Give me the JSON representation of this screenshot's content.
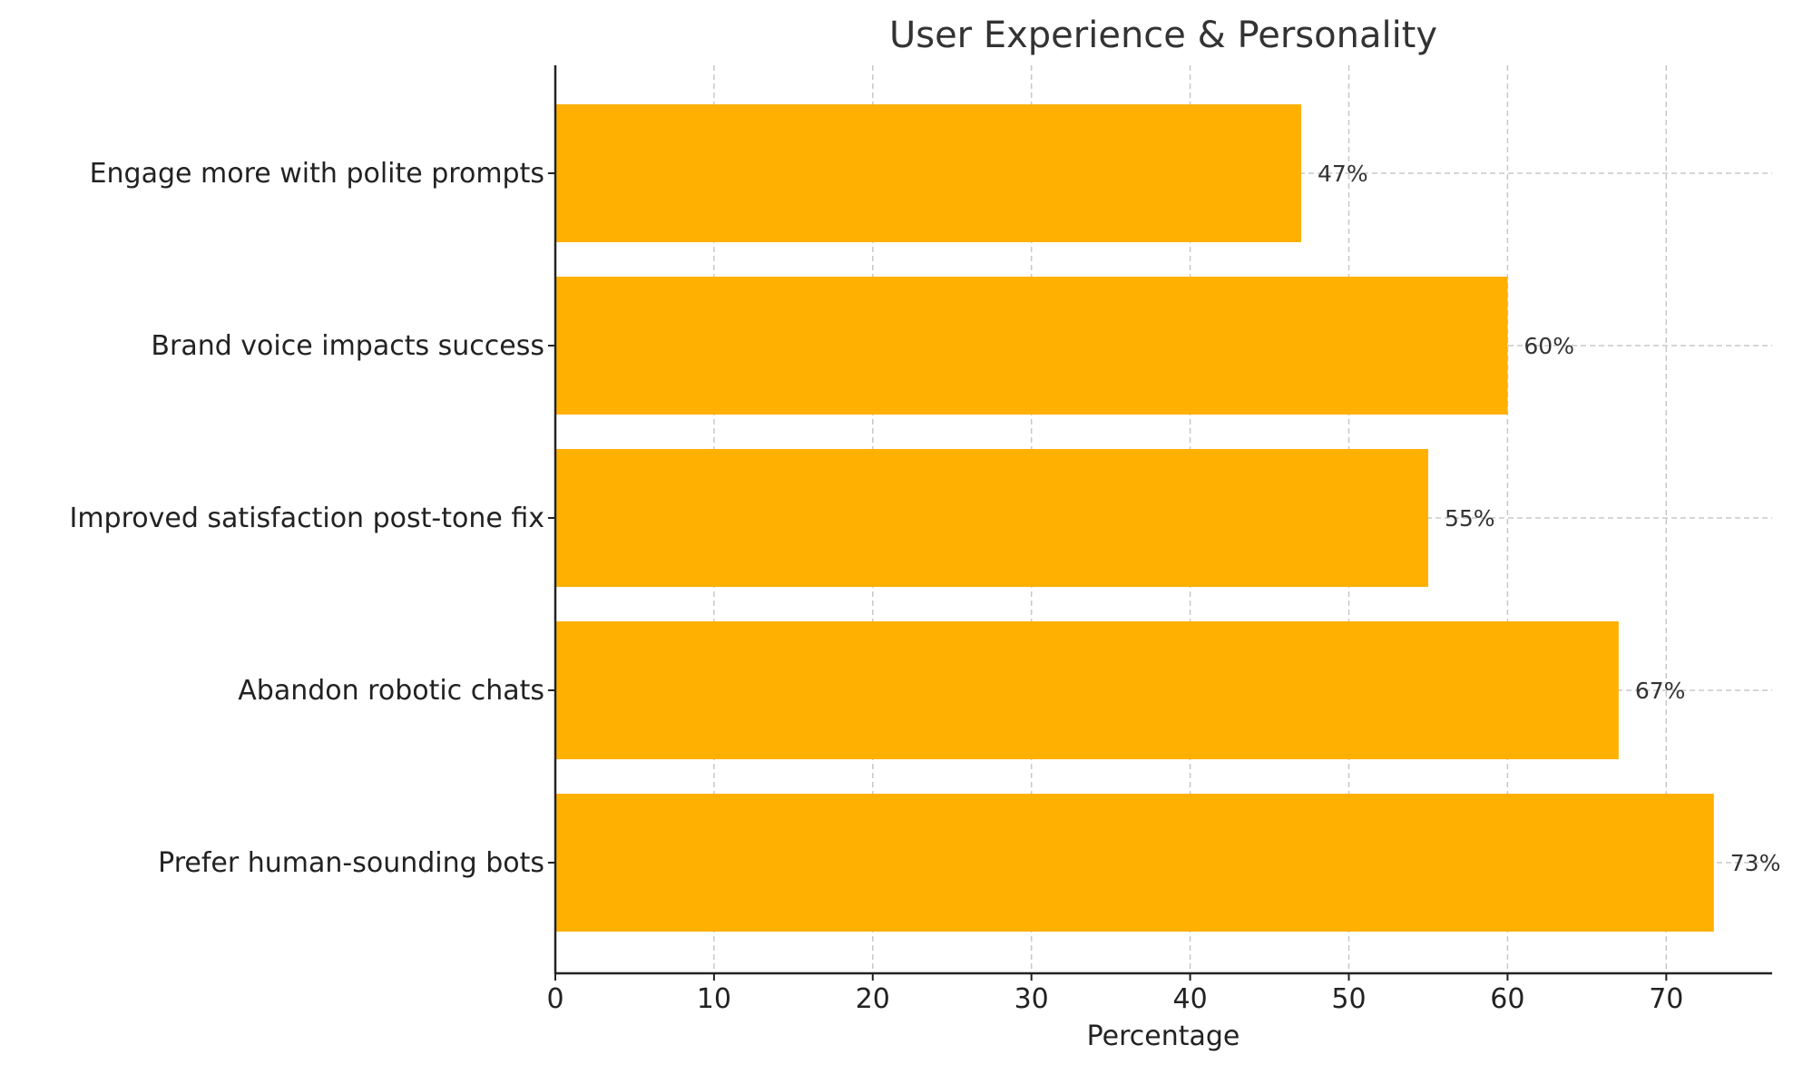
{
  "chart_data": {
    "type": "bar",
    "orientation": "horizontal",
    "title": "User Experience & Personality",
    "xlabel": "Percentage",
    "ylabel": "",
    "categories": [
      "Engage more with polite prompts",
      "Brand voice impacts success",
      "Improved satisfaction post-tone fix",
      "Abandon robotic chats",
      "Prefer human-sounding bots"
    ],
    "values": [
      47,
      60,
      55,
      67,
      73
    ],
    "data_labels": [
      "47%",
      "60%",
      "55%",
      "67%",
      "73%"
    ],
    "xlim": [
      0,
      76.65
    ],
    "xticks": [
      0,
      10,
      20,
      30,
      40,
      50,
      60,
      70
    ],
    "grid": true,
    "bar_color": "#FFB000"
  }
}
